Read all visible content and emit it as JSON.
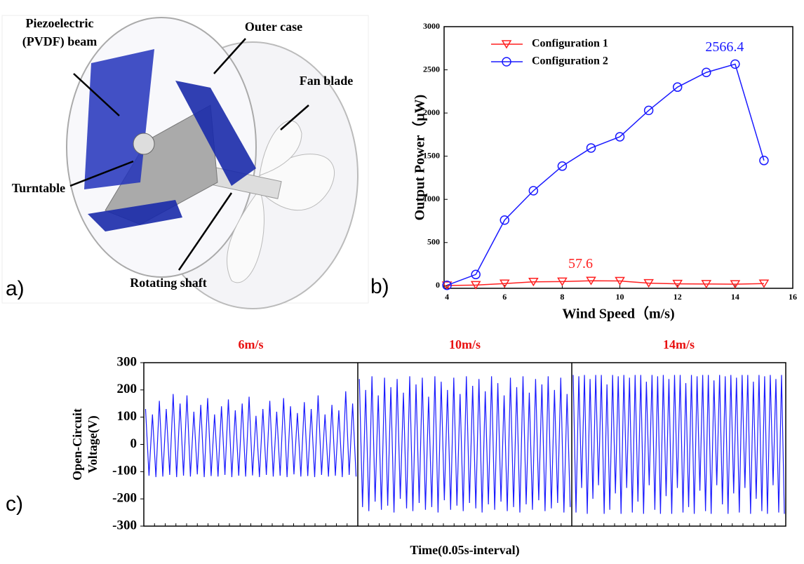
{
  "panel_labels": [
    "a)",
    "b)",
    "c)"
  ],
  "diagram": {
    "labels": [
      {
        "lines": [
          "Piezoelectric",
          "(PVDF) beam"
        ]
      },
      {
        "lines": [
          "Outer case"
        ]
      },
      {
        "lines": [
          "Fan blade"
        ]
      },
      {
        "lines": [
          "Turntable"
        ]
      },
      {
        "lines": [
          "Rotating shaft"
        ]
      }
    ]
  },
  "chart_data": [
    {
      "type": "line",
      "xlabel": "Wind Speed（m/s)",
      "ylabel": "Output Power（μW)",
      "x": [
        4,
        5,
        6,
        7,
        8,
        9,
        10,
        11,
        12,
        13,
        14,
        15
      ],
      "series": [
        {
          "name": "Configuration 1",
          "color": "#ff2020",
          "marker": "triangle-down",
          "values": [
            2,
            8,
            25,
            45,
            48,
            57.6,
            55,
            30,
            22,
            20,
            18,
            25
          ],
          "value_labels": [
            null,
            null,
            null,
            null,
            null,
            "57.6",
            null,
            null,
            null,
            null,
            null,
            null
          ]
        },
        {
          "name": "Configuration 2",
          "color": "#1a1aff",
          "marker": "circle",
          "values": [
            5,
            130,
            760,
            1100,
            1385,
            1595,
            1725,
            2030,
            2300,
            2470,
            2566.4,
            1450
          ],
          "value_labels": [
            null,
            null,
            null,
            null,
            null,
            null,
            null,
            null,
            null,
            null,
            "2566.4",
            null
          ]
        }
      ],
      "xlim": [
        3.9,
        16
      ],
      "xticks": [
        4,
        6,
        8,
        10,
        12,
        14,
        16
      ],
      "ylim": [
        -30,
        3000
      ],
      "yticks": [
        0,
        500,
        1000,
        1500,
        2000,
        2500,
        3000
      ],
      "legend": "upper-left"
    },
    {
      "type": "waveform",
      "xlabel": "Time(0.05s-interval)",
      "ylabel": [
        "Open-Circuit",
        "Voltage(V)"
      ],
      "color": "#1a1aff",
      "ylim": [
        -300,
        300
      ],
      "yticks": [
        -300,
        -200,
        -100,
        0,
        100,
        200,
        300
      ],
      "segments": [
        {
          "name": "6m/s",
          "values": [
            130,
            -115,
            110,
            -120,
            160,
            -118,
            130,
            -112,
            185,
            -120,
            150,
            -115,
            180,
            -118,
            120,
            -110,
            145,
            -120,
            170,
            -116,
            110,
            -118,
            140,
            -112,
            165,
            -120,
            125,
            -115,
            150,
            -118,
            175,
            -114,
            105,
            -120,
            130,
            -112,
            160,
            -118,
            120,
            -115,
            170,
            -120,
            140,
            -110,
            115,
            -118,
            155,
            -116,
            130,
            -120,
            180,
            -112,
            110,
            -118,
            145,
            -115,
            125,
            -120,
            195,
            -112,
            150,
            -118
          ]
        },
        {
          "name": "10m/s",
          "values": [
            240,
            -230,
            200,
            -245,
            250,
            -210,
            180,
            -240,
            245,
            -225,
            210,
            -250,
            240,
            -200,
            190,
            -235,
            250,
            -245,
            220,
            -215,
            245,
            -240,
            175,
            -230,
            250,
            -250,
            230,
            -205,
            200,
            -240,
            245,
            -225,
            185,
            -245,
            250,
            -215,
            215,
            -235,
            240,
            -250,
            195,
            -220,
            250,
            -240,
            225,
            -210,
            180,
            -245,
            245,
            -230,
            210,
            -250,
            250,
            -220,
            190,
            -240,
            240,
            -205,
            220,
            -245,
            250,
            -235,
            200,
            -215,
            245,
            -250,
            185,
            -230
          ]
        },
        {
          "name": "14m/s",
          "values": [
            255,
            -250,
            250,
            -160,
            255,
            -255,
            240,
            -200,
            255,
            -150,
            255,
            -255,
            220,
            -240,
            255,
            -180,
            250,
            -255,
            255,
            -160,
            245,
            -250,
            255,
            -210,
            255,
            -255,
            230,
            -150,
            255,
            -240,
            250,
            -255,
            255,
            -190,
            240,
            -255,
            255,
            -160,
            255,
            -250,
            225,
            -230,
            255,
            -255,
            250,
            -170,
            255,
            -245,
            255,
            -255,
            235,
            -150,
            255,
            -220,
            250,
            -255,
            255,
            -180,
            245,
            -250,
            255,
            -160,
            255,
            -255,
            230,
            -200,
            255,
            -245,
            250,
            -255,
            255,
            -150,
            240,
            -250,
            255,
            -255
          ]
        }
      ]
    }
  ]
}
